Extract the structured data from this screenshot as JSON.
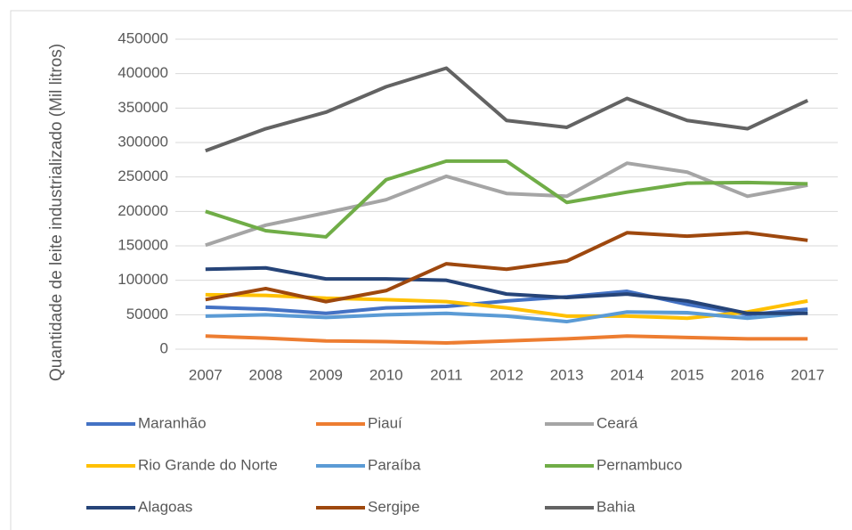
{
  "chart_data": {
    "type": "line",
    "y_label": "Quantidade de leite  industrializado (Mil litros)",
    "categories": [
      "2007",
      "2008",
      "2009",
      "2010",
      "2011",
      "2012",
      "2013",
      "2014",
      "2015",
      "2016",
      "2017"
    ],
    "ylim": [
      0,
      450000
    ],
    "yticks": [
      0,
      50000,
      100000,
      150000,
      200000,
      250000,
      300000,
      350000,
      400000,
      450000
    ],
    "grid": true,
    "legend": "bottom",
    "series": [
      {
        "name": "Maranhão",
        "color": "#4472c4",
        "values": [
          61000,
          58000,
          52000,
          60000,
          62000,
          70000,
          76000,
          84000,
          65000,
          50000,
          58000
        ]
      },
      {
        "name": "Piauí",
        "color": "#ed7d31",
        "values": [
          19000,
          16000,
          12000,
          11000,
          9000,
          12000,
          15000,
          19000,
          17000,
          15000,
          15000
        ]
      },
      {
        "name": "Ceará",
        "color": "#a5a5a5",
        "values": [
          151000,
          180000,
          198000,
          217000,
          251000,
          226000,
          222000,
          270000,
          257000,
          222000,
          238000
        ]
      },
      {
        "name": "Rio Grande do Norte",
        "color": "#ffc000",
        "values": [
          79000,
          78000,
          74000,
          72000,
          69000,
          60000,
          48000,
          48000,
          45000,
          54000,
          70000
        ]
      },
      {
        "name": "Paraíba",
        "color": "#5b9bd5",
        "values": [
          48000,
          50000,
          46000,
          50000,
          52000,
          48000,
          40000,
          54000,
          53000,
          45000,
          53000
        ]
      },
      {
        "name": "Pernambuco",
        "color": "#70ad47",
        "values": [
          200000,
          172000,
          163000,
          246000,
          273000,
          273000,
          213000,
          228000,
          241000,
          242000,
          240000
        ]
      },
      {
        "name": "Alagoas",
        "color": "#264478",
        "values": [
          116000,
          118000,
          102000,
          102000,
          100000,
          80000,
          75000,
          80000,
          70000,
          52000,
          52000
        ]
      },
      {
        "name": "Sergipe",
        "color": "#9e480e",
        "values": [
          72000,
          88000,
          69000,
          85000,
          124000,
          116000,
          128000,
          169000,
          164000,
          169000,
          158000
        ]
      },
      {
        "name": "Bahia",
        "color": "#636363",
        "values": [
          288000,
          320000,
          344000,
          381000,
          408000,
          332000,
          322000,
          364000,
          332000,
          320000,
          361000
        ]
      }
    ]
  }
}
